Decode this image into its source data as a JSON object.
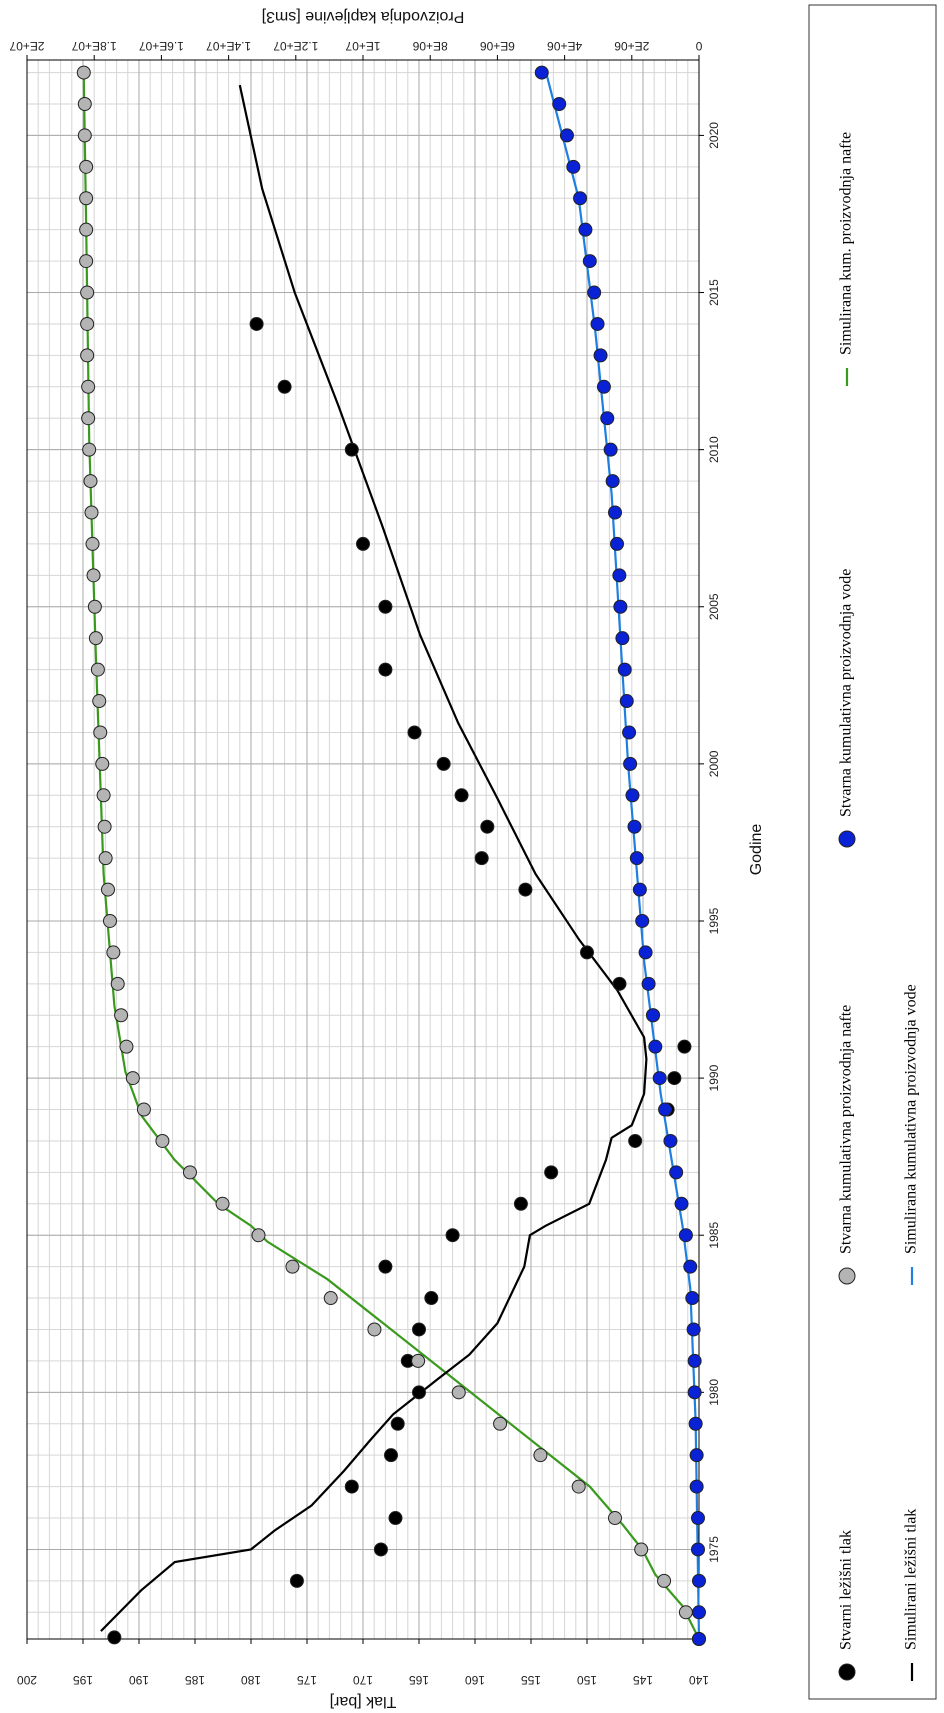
{
  "chart_data": {
    "type": "line",
    "x_label": "Godine",
    "y_label": "Tlak [bar]",
    "y2_label": "Proizvodnja kapljevine [sm3]",
    "xlim": [
      1972.15,
      2022.4
    ],
    "xticks": [
      1975,
      1980,
      1985,
      1990,
      1995,
      2000,
      2005,
      2010,
      2015,
      2020
    ],
    "ylim": [
      140,
      200
    ],
    "yticks": [
      140,
      145,
      150,
      155,
      160,
      165,
      170,
      175,
      180,
      185,
      190,
      195,
      200
    ],
    "y2lim": [
      0,
      20000000
    ],
    "y2ticks": [
      0,
      {
        "value": 2000000,
        "label": "2E+06"
      },
      {
        "value": 4000000,
        "label": "4E+06"
      },
      {
        "value": 6000000,
        "label": "6E+06"
      },
      {
        "value": 8000000,
        "label": "8E+06"
      },
      {
        "value": 10000000,
        "label": "1E+07"
      },
      {
        "value": 12000000,
        "label": "1.2E+07"
      },
      {
        "value": 14000000,
        "label": "1.4E+07"
      },
      {
        "value": 16000000,
        "label": "1.6E+07"
      },
      {
        "value": 18000000,
        "label": "1.8E+07"
      },
      {
        "value": 20000000,
        "label": "2E+07"
      }
    ],
    "grid": true,
    "legend_position": "bottom",
    "series": [
      {
        "name": "Stvarni ležišni tlak",
        "color": "#000000",
        "style": "markers",
        "axis": "y",
        "x": [
          1972.2,
          1974,
          1975,
          1976,
          1977,
          1978,
          1979,
          1980,
          1981,
          1982,
          1983,
          1984,
          1985,
          1986,
          1987,
          1988,
          1989,
          1990,
          1991,
          1992,
          1993,
          1994,
          1996,
          1997,
          1998,
          1999,
          2000,
          2001,
          2003,
          2005,
          2007,
          2010,
          2012,
          2014
        ],
        "values": [
          192.2,
          175.9,
          168.4,
          167.1,
          171.0,
          167.5,
          166.9,
          165.0,
          166.0,
          165.0,
          163.9,
          168.0,
          162.0,
          155.9,
          153.2,
          145.7,
          142.8,
          142.2,
          141.3,
          144.1,
          147.1,
          150.0,
          155.5,
          159.4,
          158.9,
          161.2,
          162.8,
          165.4,
          168.0,
          168.0,
          170.0,
          171.0,
          177.0,
          179.5
        ]
      },
      {
        "name": "Stvarna kumulativna proizvodnja nafte",
        "color": "#b4b4b4",
        "style": "markers",
        "axis": "y2",
        "x": [
          1972.15,
          1973,
          1974,
          1975,
          1976,
          1977,
          1978,
          1979,
          1980,
          1981,
          1982,
          1983,
          1984,
          1985,
          1986,
          1987,
          1988,
          1989,
          1990,
          1991,
          1992,
          1993,
          1994,
          1995,
          1996,
          1997,
          1998,
          1999,
          2000,
          2001,
          2002,
          2003,
          2004,
          2005,
          2006,
          2007,
          2008,
          2009,
          2010,
          2011,
          2012,
          2013,
          2014,
          2015,
          2016,
          2017,
          2018,
          2019,
          2020,
          2021,
          2022
        ],
        "values": [
          0,
          390000,
          1040000,
          1720000,
          2500000,
          3580000,
          4720000,
          5920000,
          7150000,
          8360000,
          9660000,
          10960000,
          12100000,
          13110000,
          14180000,
          15150000,
          15970000,
          16520000,
          16850000,
          17040000,
          17200000,
          17300000,
          17430000,
          17530000,
          17590000,
          17660000,
          17690000,
          17720000,
          17760000,
          17820000,
          17850000,
          17890000,
          17950000,
          17980000,
          18020000,
          18050000,
          18080000,
          18110000,
          18150000,
          18180000,
          18180000,
          18210000,
          18210000,
          18210000,
          18240000,
          18240000,
          18240000,
          18240000,
          18280000,
          18280000,
          18310000
        ]
      },
      {
        "name": "Stvarna kumulativna proizvodnja vode",
        "color": "#0a22d6",
        "style": "markers",
        "axis": "y2",
        "x": [
          1972.15,
          1973,
          1974,
          1975,
          1976,
          1977,
          1978,
          1979,
          1980,
          1981,
          1982,
          1983,
          1984,
          1985,
          1986,
          1987,
          1988,
          1989,
          1990,
          1991,
          1992,
          1993,
          1994,
          1995,
          1996,
          1997,
          1998,
          1999,
          2000,
          2001,
          2002,
          2003,
          2004,
          2005,
          2006,
          2007,
          2008,
          2009,
          2010,
          2011,
          2012,
          2013,
          2014,
          2015,
          2016,
          2017,
          2018,
          2019,
          2020,
          2021,
          2022
        ],
        "values": [
          0,
          0,
          0,
          30000,
          30000,
          70000,
          70000,
          100000,
          130000,
          130000,
          160000,
          200000,
          260000,
          390000,
          520000,
          680000,
          850000,
          1010000,
          1170000,
          1300000,
          1370000,
          1500000,
          1590000,
          1690000,
          1760000,
          1850000,
          1920000,
          1980000,
          2050000,
          2080000,
          2150000,
          2210000,
          2280000,
          2340000,
          2370000,
          2440000,
          2500000,
          2570000,
          2630000,
          2730000,
          2830000,
          2930000,
          3020000,
          3120000,
          3250000,
          3380000,
          3540000,
          3740000,
          3930000,
          4160000,
          4680000
        ]
      },
      {
        "name": "Simulirana kum. proizvodnja nafte",
        "color": "#3a9a1e",
        "style": "line",
        "axis": "y2",
        "x": [
          1972.15,
          1973.2,
          1974.2,
          1975.0,
          1975.8,
          1977.0,
          1980.3,
          1983.6,
          1984.8,
          1985.3,
          1986.0,
          1987.4,
          1988.8,
          1990.2,
          1992.3,
          1996.5,
          2003.4,
          2010.3,
          2017.3,
          2021.8
        ],
        "values": [
          0,
          490000,
          1300000,
          1690000,
          2280000,
          3250000,
          7150000,
          11060000,
          12850000,
          13330000,
          14310000,
          15610000,
          16590000,
          17070000,
          17400000,
          17720000,
          17950000,
          18150000,
          18240000,
          18310000
        ]
      },
      {
        "name": "Simulirani ležišni tlak",
        "color": "#000000",
        "style": "line",
        "axis": "y",
        "x": [
          1972.4,
          1973.7,
          1974.6,
          1975.0,
          1975.6,
          1976.4,
          1977.5,
          1978.5,
          1979.3,
          1980.4,
          1981.2,
          1982.2,
          1984.0,
          1985.0,
          1985.3,
          1986.0,
          1987.4,
          1988.1,
          1988.5,
          1989.5,
          1990.6,
          1991.3,
          1992.8,
          1994.4,
          1996.5,
          1998.9,
          2001.3,
          2004.1,
          2007.6,
          2011.4,
          2015.0,
          2018.3,
          2021.6
        ],
        "values": [
          193.4,
          189.8,
          186.8,
          180.0,
          177.9,
          174.6,
          171.7,
          169.3,
          167.3,
          163.4,
          160.5,
          158.0,
          155.6,
          155.1,
          153.7,
          149.8,
          148.3,
          147.8,
          146.0,
          144.9,
          144.7,
          144.9,
          147.3,
          150.7,
          154.6,
          158.0,
          161.5,
          164.9,
          168.3,
          172.2,
          176.1,
          179.0,
          181.0
        ]
      },
      {
        "name": "Simulirana kumulativna proizvodnja vode",
        "color": "#1e7fe0",
        "style": "line",
        "axis": "y2",
        "x": [
          1972.15,
          1979.1,
          1983.3,
          1985.3,
          1989.5,
          1993.7,
          2000.0,
          2008.6,
          2013.8,
          2018.0,
          2022.0
        ],
        "values": [
          0,
          100000,
          260000,
          490000,
          1140000,
          1630000,
          2110000,
          2600000,
          3090000,
          3580000,
          4550000
        ]
      }
    ]
  }
}
